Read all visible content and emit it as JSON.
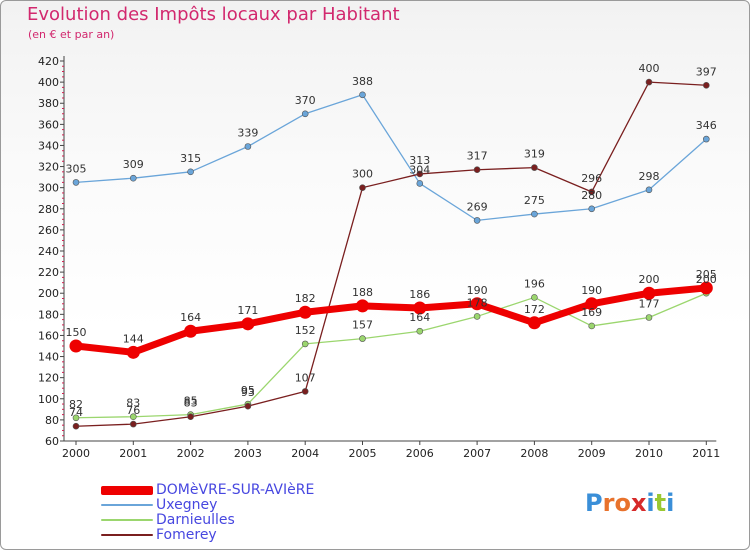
{
  "title": "Evolution des Impôts locaux par Habitant",
  "subtitle": "(en € et par an)",
  "logo": {
    "chars": [
      "P",
      "r",
      "o",
      "x",
      "i",
      "t",
      "i"
    ],
    "colors": [
      "#3a8fd8",
      "#e8722c",
      "#e8722c",
      "#d62a2a",
      "#3a8fd8",
      "#9ac832",
      "#3a8fd8"
    ]
  },
  "chart_data": {
    "type": "line",
    "x": [
      "2000",
      "2001",
      "2002",
      "2003",
      "2004",
      "2005",
      "2006",
      "2007",
      "2008",
      "2009",
      "2010",
      "2011"
    ],
    "ylim": [
      60,
      420
    ],
    "yticks": [
      60,
      80,
      100,
      120,
      140,
      160,
      180,
      200,
      220,
      240,
      260,
      280,
      300,
      320,
      340,
      360,
      380,
      400,
      420
    ],
    "grid": false,
    "legend_position": "bottom-left",
    "series": [
      {
        "name": "DOMèVRE-SUR-AVIèRE",
        "color": "#ee0000",
        "values": [
          150,
          144,
          164,
          171,
          182,
          188,
          186,
          190,
          172,
          190,
          200,
          205
        ]
      },
      {
        "name": "Uxegney",
        "color": "#6aa5d9",
        "values": [
          305,
          309,
          315,
          339,
          370,
          388,
          304,
          269,
          275,
          280,
          298,
          346
        ]
      },
      {
        "name": "Darnieulles",
        "color": "#9bd66e",
        "values": [
          82,
          83,
          85,
          95,
          152,
          157,
          164,
          178,
          196,
          169,
          177,
          200
        ]
      },
      {
        "name": "Fomerey",
        "color": "#7a1f1f",
        "values": [
          74,
          76,
          83,
          93,
          107,
          300,
          313,
          317,
          319,
          296,
          400,
          397
        ]
      }
    ]
  }
}
